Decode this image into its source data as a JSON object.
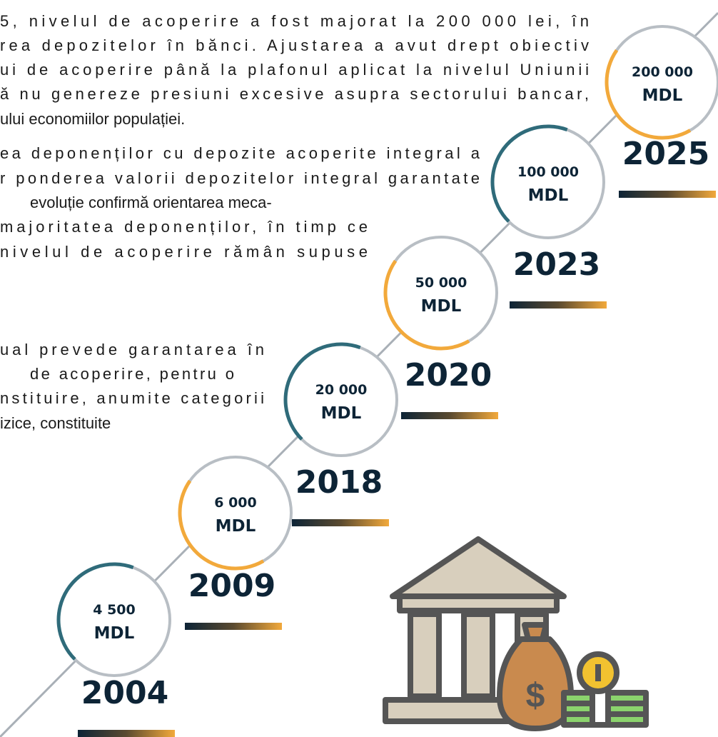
{
  "paragraphs": [
    [
      "5, nivelul de acoperire a fost majorat la 200 000 lei, în",
      "rea depozitelor în bănci. Ajustarea a avut drept obiectiv",
      "ui de acoperire până la plafonul aplicat la nivelul Uniunii",
      "ă nu genereze presiuni excesive asupra sectorului bancar,",
      "ului economiilor populației."
    ],
    [
      "ea deponenților cu depozite acoperite integral a",
      "r ponderea valorii depozitelor integral garantate",
      "evoluție confirmă orientarea meca-",
      "majoritatea deponenților, în timp ce",
      "nivelul de acoperire rămân supuse"
    ],
    [
      "ual prevede garantarea în",
      "de acoperire, pentru o",
      "nstituire, anumite categorii",
      "izice, constituite"
    ]
  ],
  "timeline": [
    {
      "amount": "4 500",
      "unit": "MDL",
      "year": "2004"
    },
    {
      "amount": "6 000",
      "unit": "MDL",
      "year": "2009"
    },
    {
      "amount": "20 000",
      "unit": "MDL",
      "year": "2018"
    },
    {
      "amount": "50 000",
      "unit": "MDL",
      "year": "2020"
    },
    {
      "amount": "100 000",
      "unit": "MDL",
      "year": "2023"
    },
    {
      "amount": "200 000",
      "unit": "MDL",
      "year": "2025"
    }
  ]
}
